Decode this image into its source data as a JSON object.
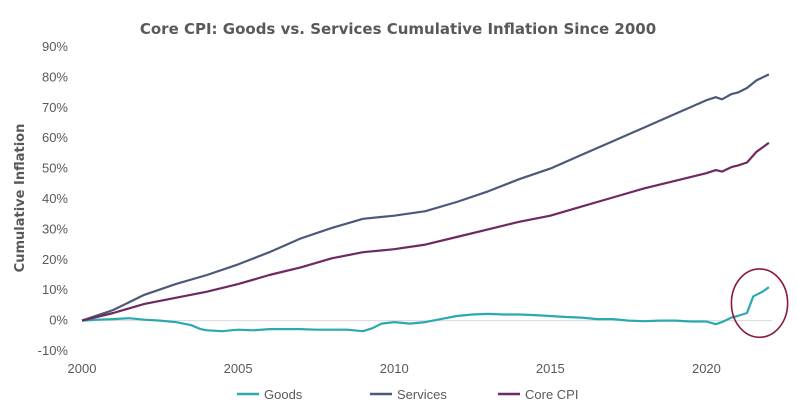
{
  "chart_data": {
    "type": "line",
    "title": "Core CPI: Goods vs. Services Cumulative Inflation Since 2000",
    "xlabel": "",
    "ylabel": "Cumulative Inflation",
    "x_ticks": [
      "2000",
      "2005",
      "2010",
      "2015",
      "2020"
    ],
    "y_ticks": [
      "-10%",
      "0%",
      "10%",
      "20%",
      "30%",
      "40%",
      "50%",
      "60%",
      "70%",
      "80%",
      "90%"
    ],
    "xlim": [
      2000,
      2022.1
    ],
    "ylim": [
      -10,
      90
    ],
    "grid": false,
    "legend_position": "bottom",
    "series": [
      {
        "name": "Goods",
        "color": "#2aa9b0",
        "points": [
          [
            2000,
            0
          ],
          [
            2000.5,
            0.3
          ],
          [
            2001,
            0.5
          ],
          [
            2001.5,
            0.8
          ],
          [
            2002,
            0.3
          ],
          [
            2002.5,
            0
          ],
          [
            2003,
            -0.5
          ],
          [
            2003.5,
            -1.5
          ],
          [
            2003.8,
            -2.8
          ],
          [
            2004,
            -3.2
          ],
          [
            2004.5,
            -3.5
          ],
          [
            2005,
            -3.0
          ],
          [
            2005.5,
            -3.2
          ],
          [
            2006,
            -2.8
          ],
          [
            2006.5,
            -2.8
          ],
          [
            2007,
            -2.8
          ],
          [
            2007.5,
            -3.0
          ],
          [
            2008,
            -3.0
          ],
          [
            2008.5,
            -3.0
          ],
          [
            2009,
            -3.5
          ],
          [
            2009.3,
            -2.5
          ],
          [
            2009.6,
            -1.0
          ],
          [
            2010,
            -0.5
          ],
          [
            2010.5,
            -1.0
          ],
          [
            2011,
            -0.5
          ],
          [
            2011.5,
            0.5
          ],
          [
            2012,
            1.5
          ],
          [
            2012.5,
            2.0
          ],
          [
            2013,
            2.2
          ],
          [
            2013.5,
            2.0
          ],
          [
            2014,
            2.0
          ],
          [
            2014.5,
            1.8
          ],
          [
            2015,
            1.5
          ],
          [
            2015.5,
            1.2
          ],
          [
            2016,
            1.0
          ],
          [
            2016.5,
            0.5
          ],
          [
            2017,
            0.5
          ],
          [
            2017.5,
            0
          ],
          [
            2018,
            -0.2
          ],
          [
            2018.5,
            0
          ],
          [
            2019,
            0
          ],
          [
            2019.5,
            -0.3
          ],
          [
            2020,
            -0.3
          ],
          [
            2020.3,
            -1.2
          ],
          [
            2020.5,
            -0.5
          ],
          [
            2020.8,
            1.0
          ],
          [
            2021,
            1.5
          ],
          [
            2021.3,
            2.5
          ],
          [
            2021.5,
            8.0
          ],
          [
            2021.8,
            9.5
          ],
          [
            2022,
            11.0
          ]
        ]
      },
      {
        "name": "Services",
        "color": "#4c5a7a",
        "points": [
          [
            2000,
            0
          ],
          [
            2001,
            3.5
          ],
          [
            2002,
            8.5
          ],
          [
            2003,
            12.0
          ],
          [
            2004,
            15.0
          ],
          [
            2005,
            18.5
          ],
          [
            2006,
            22.5
          ],
          [
            2007,
            27.0
          ],
          [
            2008,
            30.5
          ],
          [
            2009,
            33.5
          ],
          [
            2010,
            34.5
          ],
          [
            2011,
            36.0
          ],
          [
            2012,
            39.0
          ],
          [
            2013,
            42.5
          ],
          [
            2014,
            46.5
          ],
          [
            2015,
            50.0
          ],
          [
            2016,
            54.5
          ],
          [
            2017,
            59.0
          ],
          [
            2018,
            63.5
          ],
          [
            2019,
            68.0
          ],
          [
            2020,
            72.5
          ],
          [
            2020.3,
            73.5
          ],
          [
            2020.5,
            72.8
          ],
          [
            2020.8,
            74.5
          ],
          [
            2021,
            75.0
          ],
          [
            2021.3,
            76.5
          ],
          [
            2021.6,
            79.0
          ],
          [
            2022,
            81.0
          ]
        ]
      },
      {
        "name": "Core CPI",
        "color": "#6e2a60",
        "points": [
          [
            2000,
            0
          ],
          [
            2001,
            2.5
          ],
          [
            2002,
            5.5
          ],
          [
            2003,
            7.5
          ],
          [
            2004,
            9.5
          ],
          [
            2005,
            12.0
          ],
          [
            2006,
            15.0
          ],
          [
            2007,
            17.5
          ],
          [
            2008,
            20.5
          ],
          [
            2009,
            22.5
          ],
          [
            2010,
            23.5
          ],
          [
            2011,
            25.0
          ],
          [
            2012,
            27.5
          ],
          [
            2013,
            30.0
          ],
          [
            2014,
            32.5
          ],
          [
            2015,
            34.5
          ],
          [
            2016,
            37.5
          ],
          [
            2017,
            40.5
          ],
          [
            2018,
            43.5
          ],
          [
            2019,
            46.0
          ],
          [
            2020,
            48.5
          ],
          [
            2020.3,
            49.5
          ],
          [
            2020.5,
            49.0
          ],
          [
            2020.8,
            50.5
          ],
          [
            2021,
            51.0
          ],
          [
            2021.3,
            52.0
          ],
          [
            2021.6,
            55.5
          ],
          [
            2022,
            58.5
          ]
        ]
      }
    ],
    "annotation": {
      "shape": "ellipse",
      "color": "#8b1a3a",
      "x_range": [
        2020.8,
        2022.6
      ],
      "y_range": [
        -5.5,
        17
      ]
    }
  }
}
